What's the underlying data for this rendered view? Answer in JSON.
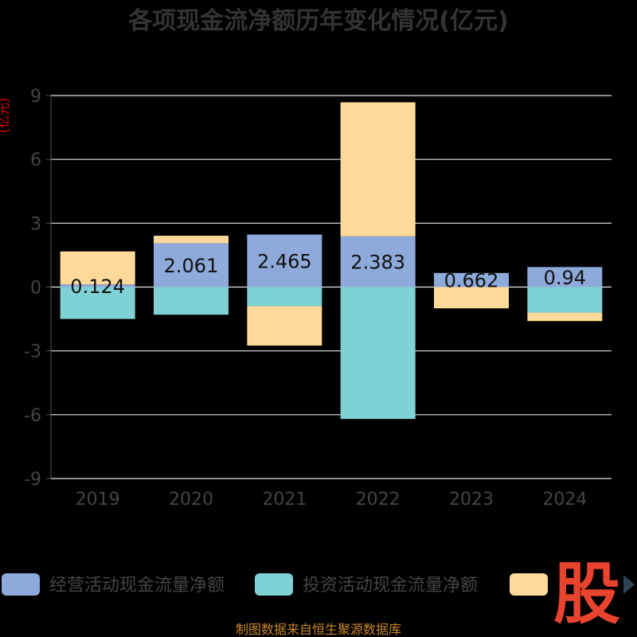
{
  "chart_data": {
    "type": "bar",
    "stacked": true,
    "title": "各项现金流净额历年变化情况(亿元)",
    "ylabel": "(亿元)",
    "categories": [
      "2019",
      "2020",
      "2021",
      "2022",
      "2023",
      "2024"
    ],
    "ylim": [
      -9,
      9
    ],
    "yticks": [
      -9,
      -6,
      -3,
      0,
      3,
      6,
      9
    ],
    "series": [
      {
        "name": "经营活动现金流量净额",
        "color": "#8eaadb",
        "values": [
          0.124,
          2.061,
          2.465,
          2.383,
          0.662,
          0.94
        ],
        "labels": [
          "0.124",
          "2.061",
          "2.465",
          "2.383",
          "0.662",
          "0.94"
        ]
      },
      {
        "name": "投资活动现金流量净额",
        "color": "#7fd1d3",
        "values": [
          -1.5,
          -1.3,
          -0.9,
          -6.2,
          0,
          -1.2
        ]
      },
      {
        "name": "",
        "color": "#ffd999",
        "values": [
          1.55,
          0.35,
          -1.85,
          6.3,
          -1.0,
          -0.4
        ]
      }
    ],
    "grid": true,
    "legend": "bottom"
  },
  "footer": {
    "source": "制图数据来自恒生聚源数据库",
    "watermark": "股"
  }
}
